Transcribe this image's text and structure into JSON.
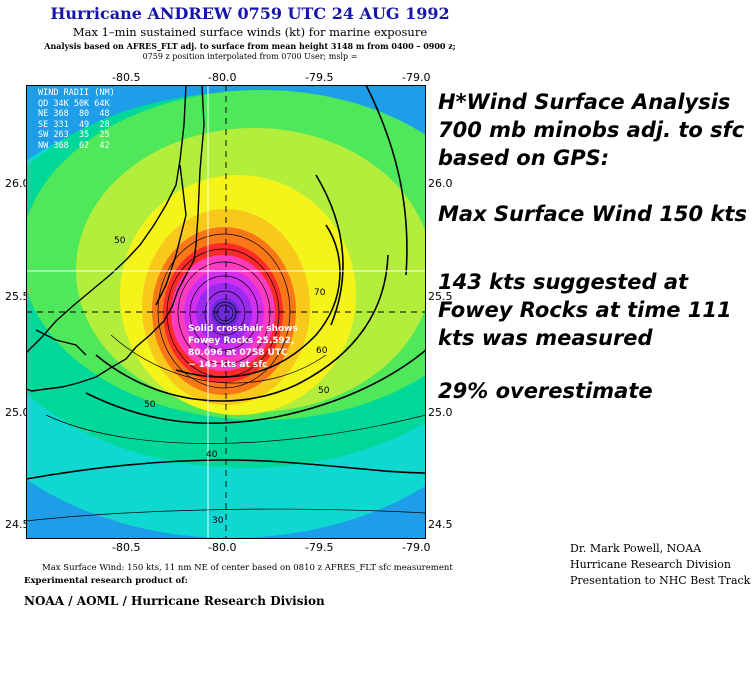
{
  "header": {
    "title": "Hurricane ANDREW 0759 UTC 24 AUG 1992",
    "subtitle": "Max 1–min sustained surface winds (kt) for marine exposure",
    "analysis_line1": "Analysis based on AFRES_FLT adj. to surface from mean height 3148 m from 0400 – 0900 z;",
    "analysis_line2": "0759 z position interpolated from 0700 User; mslp ="
  },
  "map": {
    "lon_ticks": [
      "-80.5",
      "-80.0",
      "-79.5",
      "-79.0"
    ],
    "lat_ticks": [
      "26.0",
      "25.5",
      "25.0",
      "24.5"
    ],
    "contour_labels": [
      "30",
      "40",
      "50",
      "50",
      "60",
      "70",
      "50"
    ],
    "wind_radii": {
      "header": "WIND RADII (NM)",
      "cols": "QD 34K 50K 64K",
      "rows": [
        "NE 368  80  48",
        "SE 331  49  28",
        "SW 263  35  25",
        "NW 368  62  42"
      ]
    },
    "crosshair_note": [
      "Solid crosshair shows",
      "Fowey Rocks 25.592,",
      "80.096 at 0758 UTC",
      "~ 143 kts at sfc"
    ],
    "colors": {
      "c_lt30": "#1e9ee8",
      "c_30": "#0ed8d0",
      "c_40": "#00d89a",
      "c_50": "#4ee85a",
      "c_60": "#b4ee3c",
      "c_70": "#f4f41a",
      "c_80": "#f8c81a",
      "c_90": "#f87818",
      "c_100": "#ff2a2a",
      "c_110": "#ff3cc0",
      "c_120": "#d22ef0",
      "c_130": "#9a2aee",
      "c_140": "#6a2ad8",
      "land": "#000000"
    }
  },
  "right_panel": {
    "line1": "H*Wind Surface Analysis",
    "line2": "700 mb minobs adj. to sfc",
    "line3": "based on GPS:",
    "line4": "Max Surface Wind 150 kts",
    "line5": "143 kts suggested at",
    "line6": "Fowey Rocks at time 111",
    "line7": "kts was measured",
    "line8": "29% overestimate"
  },
  "credits": {
    "line1": "Dr. Mark Powell, NOAA",
    "line2": "Hurricane Research Division",
    "line3": "Presentation to NHC Best Track"
  },
  "footer": {
    "line1": "Max Surface Wind: 150 kts, 11 nm NE of center based on 0810 z AFRES_FLT sfc measurement",
    "line2": "Experimental research product of:",
    "line3": "NOAA / AOML / Hurricane Research Division"
  }
}
